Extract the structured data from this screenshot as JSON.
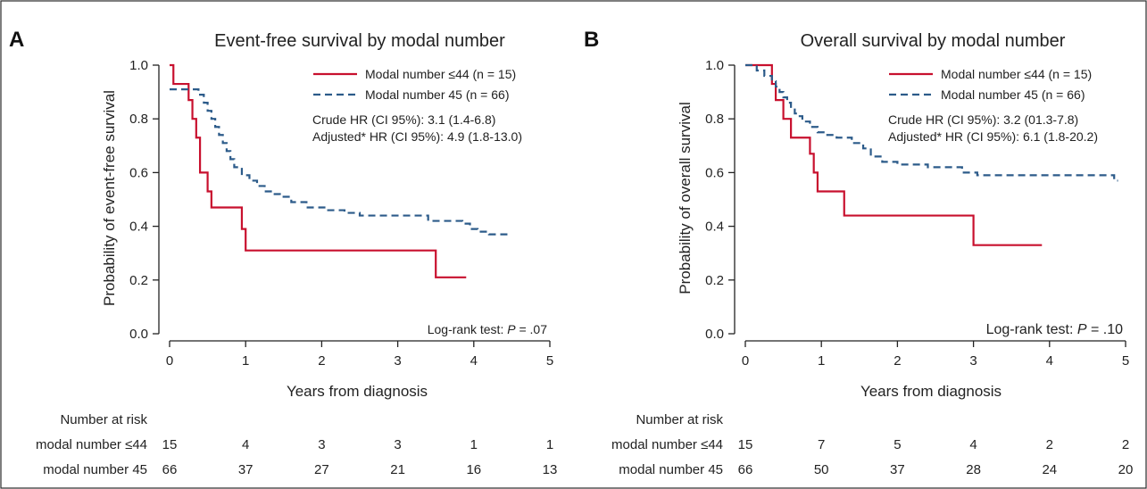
{
  "colors": {
    "series1": "#c8102e",
    "series2": "#2c5b8a"
  },
  "chart_data": [
    {
      "type": "line",
      "step": true,
      "panel_letter": "A",
      "title": "Event-free survival by modal number",
      "xlabel": "Years from diagnosis",
      "ylabel": "Probability of event-free survival",
      "xlim": [
        0,
        5
      ],
      "ylim": [
        0,
        1
      ],
      "xticks": [
        "0",
        "1",
        "2",
        "3",
        "4",
        "5"
      ],
      "yticks": [
        "0.0",
        "0.2",
        "0.4",
        "0.6",
        "0.8",
        "1.0"
      ],
      "legend": "top-right",
      "series": [
        {
          "name": "Modal number ≤44 (n = 15)",
          "style": "solid",
          "x": [
            0,
            0.05,
            0.25,
            0.3,
            0.35,
            0.4,
            0.5,
            0.55,
            0.95,
            1.0,
            3.5,
            3.9
          ],
          "y": [
            1.0,
            0.93,
            0.87,
            0.8,
            0.73,
            0.6,
            0.53,
            0.47,
            0.39,
            0.31,
            0.21,
            0.21
          ]
        },
        {
          "name": "Modal number 45 (n = 66)",
          "style": "dashed",
          "x": [
            0,
            0.38,
            0.45,
            0.5,
            0.55,
            0.6,
            0.65,
            0.7,
            0.75,
            0.8,
            0.85,
            0.95,
            1.05,
            1.15,
            1.25,
            1.35,
            1.45,
            1.6,
            1.8,
            2.05,
            2.3,
            2.5,
            2.7,
            3.0,
            3.4,
            3.85,
            3.95,
            4.05,
            4.2,
            4.5
          ],
          "y": [
            0.91,
            0.89,
            0.86,
            0.83,
            0.8,
            0.77,
            0.74,
            0.71,
            0.68,
            0.65,
            0.62,
            0.59,
            0.57,
            0.55,
            0.53,
            0.52,
            0.51,
            0.49,
            0.47,
            0.46,
            0.45,
            0.44,
            0.44,
            0.44,
            0.42,
            0.41,
            0.39,
            0.38,
            0.37,
            0.37
          ]
        }
      ],
      "annotations": [
        "Crude HR (CI 95%): 3.1 (1.4-6.8)",
        "Adjusted* HR (CI 95%): 4.9 (1.8-13.0)"
      ],
      "test_prefix": "Log-rank test: ",
      "test_p": "P",
      "test_value": " = .07",
      "risk_table": {
        "title": "Number at risk",
        "rows": [
          {
            "label": "modal number ≤44",
            "values": [
              "15",
              "4",
              "3",
              "3",
              "1",
              "1"
            ]
          },
          {
            "label": "modal number 45",
            "values": [
              "66",
              "37",
              "27",
              "21",
              "16",
              "13"
            ]
          }
        ]
      }
    },
    {
      "type": "line",
      "step": true,
      "panel_letter": "B",
      "title": "Overall survival by modal number",
      "xlabel": "Years from diagnosis",
      "ylabel": "Probability of overall survival",
      "xlim": [
        0,
        5
      ],
      "ylim": [
        0,
        1
      ],
      "xticks": [
        "0",
        "1",
        "2",
        "3",
        "4",
        "5"
      ],
      "yticks": [
        "0.0",
        "0.2",
        "0.4",
        "0.6",
        "0.8",
        "1.0"
      ],
      "legend": "top-right",
      "series": [
        {
          "name": "Modal number ≤44 (n = 15)",
          "style": "solid",
          "x": [
            0,
            0.35,
            0.4,
            0.5,
            0.6,
            0.85,
            0.9,
            0.95,
            1.3,
            3.0,
            3.9
          ],
          "y": [
            1.0,
            0.93,
            0.87,
            0.8,
            0.73,
            0.67,
            0.6,
            0.53,
            0.44,
            0.33,
            0.33
          ],
          "tail": false
        },
        {
          "name": "Modal number 45 (n = 66)",
          "style": "dashed",
          "x": [
            0,
            0.15,
            0.25,
            0.35,
            0.4,
            0.45,
            0.5,
            0.55,
            0.6,
            0.65,
            0.7,
            0.75,
            0.85,
            0.95,
            1.05,
            1.2,
            1.4,
            1.55,
            1.65,
            1.8,
            2.0,
            2.4,
            2.85,
            3.05,
            4.85,
            4.9
          ],
          "y": [
            1.0,
            0.98,
            0.96,
            0.94,
            0.92,
            0.9,
            0.88,
            0.86,
            0.84,
            0.82,
            0.81,
            0.79,
            0.77,
            0.75,
            0.74,
            0.73,
            0.71,
            0.69,
            0.66,
            0.64,
            0.63,
            0.62,
            0.6,
            0.59,
            0.57,
            0.57
          ]
        }
      ],
      "annotations": [
        "Crude HR (CI 95%): 3.2 (01.3-7.8)",
        "Adjusted* HR (CI 95%): 6.1 (1.8-20.2)"
      ],
      "test_prefix": "Log-rank test: ",
      "test_p": "P",
      "test_value": " = .10",
      "risk_table": {
        "title": "Number at risk",
        "rows": [
          {
            "label": "modal number ≤44",
            "values": [
              "15",
              "7",
              "5",
              "4",
              "2",
              "2"
            ]
          },
          {
            "label": "modal number 45",
            "values": [
              "66",
              "50",
              "37",
              "28",
              "24",
              "20"
            ]
          }
        ]
      }
    }
  ]
}
